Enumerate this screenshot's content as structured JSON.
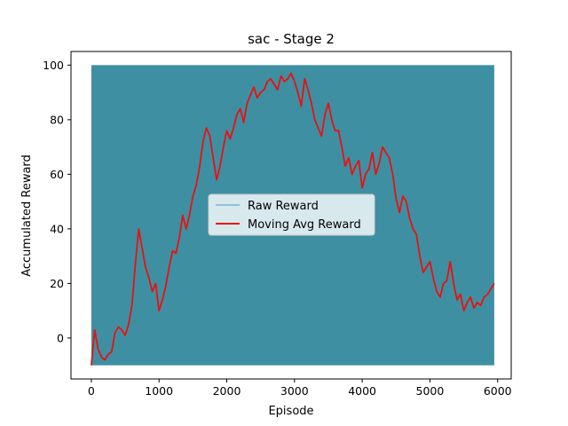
{
  "chart_data": {
    "type": "line",
    "title": "sac - Stage 2",
    "xlabel": "Episode",
    "ylabel": "Accumulated Reward",
    "xlim": [
      -300,
      6200
    ],
    "ylim": [
      -15,
      105
    ],
    "xticks": [
      0,
      1000,
      2000,
      3000,
      4000,
      5000,
      6000
    ],
    "yticks": [
      0,
      20,
      40,
      60,
      80,
      100
    ],
    "grid": false,
    "legend_position": "center",
    "series": [
      {
        "name": "Raw Reward",
        "color": "#3f8fa3",
        "legend_color": "#7ab3d6",
        "kind": "raw-band",
        "x_range": [
          0,
          5950
        ],
        "y_values": [
          -10,
          100
        ]
      },
      {
        "name": "Moving Avg Reward",
        "color": "#e8110f",
        "x": [
          0,
          50,
          100,
          150,
          200,
          250,
          300,
          350,
          400,
          450,
          500,
          550,
          600,
          650,
          700,
          750,
          800,
          850,
          900,
          950,
          1000,
          1050,
          1100,
          1150,
          1200,
          1250,
          1300,
          1350,
          1400,
          1450,
          1500,
          1550,
          1600,
          1650,
          1700,
          1750,
          1800,
          1850,
          1900,
          1950,
          2000,
          2050,
          2100,
          2150,
          2200,
          2250,
          2300,
          2350,
          2400,
          2450,
          2500,
          2550,
          2600,
          2650,
          2700,
          2750,
          2800,
          2850,
          2900,
          2950,
          3000,
          3050,
          3100,
          3150,
          3200,
          3250,
          3300,
          3350,
          3400,
          3450,
          3500,
          3550,
          3600,
          3650,
          3700,
          3750,
          3800,
          3850,
          3900,
          3950,
          4000,
          4050,
          4100,
          4150,
          4200,
          4250,
          4300,
          4350,
          4400,
          4450,
          4500,
          4550,
          4600,
          4650,
          4700,
          4750,
          4800,
          4850,
          4900,
          4950,
          5000,
          5050,
          5100,
          5150,
          5200,
          5250,
          5300,
          5350,
          5400,
          5450,
          5500,
          5550,
          5600,
          5650,
          5700,
          5750,
          5800,
          5850,
          5900,
          5950
        ],
        "values": [
          -10,
          3,
          -4,
          -7,
          -8,
          -6,
          -5,
          2,
          4,
          3,
          1,
          5,
          12,
          27,
          40,
          33,
          26,
          22,
          17,
          20,
          10,
          14,
          19,
          26,
          32,
          31,
          37,
          45,
          40,
          45,
          52,
          56,
          63,
          72,
          77,
          74,
          66,
          58,
          63,
          70,
          76,
          73,
          77,
          82,
          84,
          79,
          86,
          89,
          92,
          88,
          90,
          91,
          94,
          95,
          93,
          91,
          96,
          94,
          95,
          97,
          94,
          90,
          85,
          95,
          91,
          86,
          80,
          77,
          74,
          82,
          86,
          80,
          76,
          76,
          70,
          63,
          66,
          60,
          63,
          65,
          55,
          60,
          62,
          68,
          60,
          64,
          70,
          68,
          66,
          60,
          51,
          46,
          52,
          50,
          44,
          40,
          38,
          30,
          24,
          26,
          28,
          22,
          17,
          15,
          20,
          21,
          28,
          20,
          14,
          16,
          10,
          13,
          15,
          11,
          13,
          12,
          15,
          16,
          18,
          20
        ]
      }
    ]
  }
}
